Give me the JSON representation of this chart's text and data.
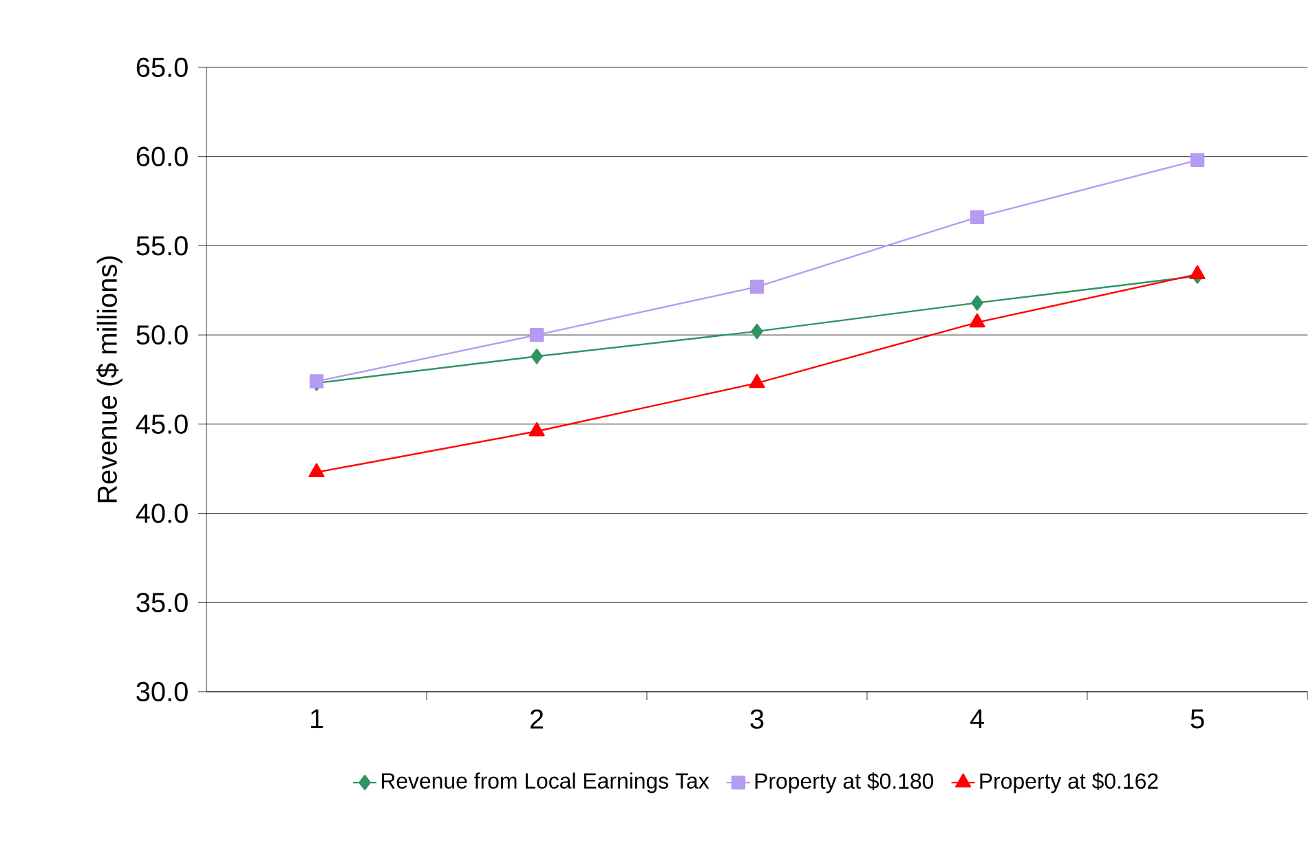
{
  "chart_data": {
    "type": "line",
    "ylabel": "Revenue ($ millions)",
    "categories": [
      "1",
      "2",
      "3",
      "4",
      "5"
    ],
    "ylim": [
      30,
      65
    ],
    "yticks": [
      {
        "value": 30,
        "label": "30.0"
      },
      {
        "value": 35,
        "label": "35.0"
      },
      {
        "value": 40,
        "label": "40.0"
      },
      {
        "value": 45,
        "label": "45.0"
      },
      {
        "value": 50,
        "label": "50.0"
      },
      {
        "value": 55,
        "label": "55.0"
      },
      {
        "value": 60,
        "label": "60.0"
      },
      {
        "value": 65,
        "label": "65.0"
      }
    ],
    "grid": "y",
    "legend": "bottom",
    "line_style": "solid",
    "series": [
      {
        "name": "Revenue from Local Earnings Tax",
        "color": "#2e9462",
        "marker": "diamond",
        "values": [
          47.3,
          48.8,
          50.2,
          51.8,
          53.3
        ]
      },
      {
        "name": "Property at $0.180",
        "color": "#b49cf0",
        "marker": "square",
        "values": [
          47.4,
          50.0,
          52.7,
          56.6,
          59.8
        ]
      },
      {
        "name": "Property at $0.162",
        "color": "#ff0000",
        "marker": "triangle",
        "values": [
          42.3,
          44.6,
          47.3,
          50.7,
          53.4
        ]
      }
    ]
  }
}
